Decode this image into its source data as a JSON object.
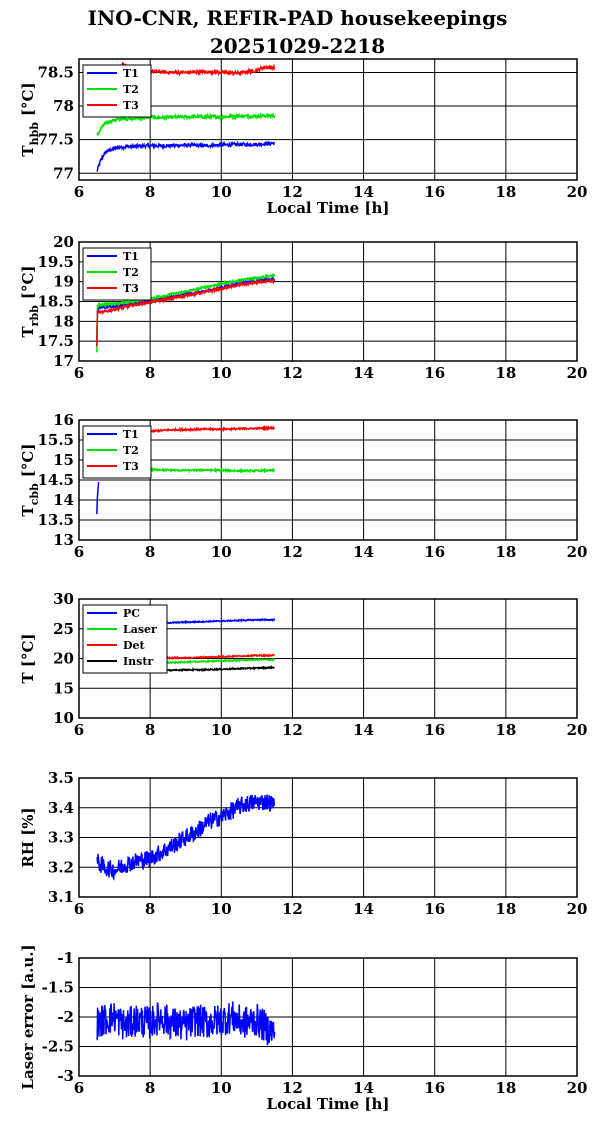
{
  "title_line1": "INO-CNR, REFIR-PAD housekeepings",
  "title_line2": "20251029-2218",
  "colors": {
    "blue": "#0000ff",
    "green": "#00e000",
    "red": "#ff0000",
    "black": "#000000"
  },
  "chart_data": [
    {
      "type": "line",
      "id": "hbb",
      "ylabel_main": "T",
      "ylabel_sub": "hbb",
      "ylabel_unit": "[°C]",
      "xlabel": "Local Time [h]",
      "xlim": [
        6,
        20
      ],
      "ylim": [
        76.9,
        78.7
      ],
      "xticks": [
        6,
        8,
        10,
        12,
        14,
        16,
        18,
        20
      ],
      "yticks": [
        77,
        77.5,
        78,
        78.5
      ],
      "grid": true,
      "legend": "top-left",
      "series": [
        {
          "name": "T1",
          "color": "blue",
          "x": [
            6.5,
            6.6,
            6.7,
            6.8,
            7.0,
            7.2,
            7.5,
            8.0,
            8.5,
            9.0,
            9.5,
            10.0,
            10.5,
            11.0,
            11.5
          ],
          "y": [
            77.02,
            77.18,
            77.28,
            77.33,
            77.37,
            77.39,
            77.4,
            77.41,
            77.41,
            77.42,
            77.41,
            77.42,
            77.43,
            77.43,
            77.45
          ]
        },
        {
          "name": "T2",
          "color": "green",
          "x": [
            6.5,
            6.6,
            6.7,
            6.8,
            7.0,
            7.2,
            7.5,
            8.0,
            8.5,
            9.0,
            9.5,
            10.0,
            10.5,
            11.0,
            11.5
          ],
          "y": [
            77.55,
            77.65,
            77.72,
            77.76,
            77.79,
            77.81,
            77.82,
            77.83,
            77.83,
            77.84,
            77.84,
            77.84,
            77.85,
            77.85,
            77.86
          ]
        },
        {
          "name": "T3",
          "color": "red",
          "x": [
            7.2,
            7.5,
            8.0,
            8.5,
            9.0,
            9.5,
            10.0,
            10.5,
            11.0,
            11.2,
            11.5
          ],
          "y": [
            78.62,
            78.55,
            78.52,
            78.5,
            78.5,
            78.51,
            78.5,
            78.49,
            78.53,
            78.58,
            78.57
          ]
        }
      ]
    },
    {
      "type": "line",
      "id": "rbb",
      "ylabel_main": "T",
      "ylabel_sub": "rbb",
      "ylabel_unit": "[°C]",
      "xlabel": "",
      "xlim": [
        6,
        20
      ],
      "ylim": [
        17,
        20
      ],
      "xticks": [
        6,
        8,
        10,
        12,
        14,
        16,
        18,
        20
      ],
      "yticks": [
        17,
        17.5,
        18,
        18.5,
        19,
        19.5,
        20
      ],
      "grid": true,
      "legend": "top-left",
      "series": [
        {
          "name": "T1",
          "color": "blue",
          "x": [
            6.5,
            6.52,
            6.6,
            7.0,
            7.5,
            8.0,
            8.5,
            9.0,
            9.5,
            10.0,
            10.5,
            11.0,
            11.5
          ],
          "y": [
            17.4,
            18.3,
            18.35,
            18.38,
            18.45,
            18.52,
            18.6,
            18.68,
            18.75,
            18.85,
            18.95,
            19.02,
            19.07
          ]
        },
        {
          "name": "T2",
          "color": "green",
          "x": [
            6.5,
            6.52,
            6.6,
            7.0,
            7.5,
            8.0,
            8.5,
            9.0,
            9.5,
            10.0,
            10.5,
            11.0,
            11.5
          ],
          "y": [
            17.25,
            18.4,
            18.42,
            18.45,
            18.5,
            18.58,
            18.66,
            18.75,
            18.85,
            18.95,
            19.03,
            19.1,
            19.15
          ]
        },
        {
          "name": "T3",
          "color": "red",
          "x": [
            6.5,
            6.52,
            6.6,
            7.0,
            7.5,
            8.0,
            8.5,
            9.0,
            9.5,
            10.0,
            10.5,
            11.0,
            11.5
          ],
          "y": [
            17.35,
            18.25,
            18.22,
            18.3,
            18.4,
            18.48,
            18.56,
            18.65,
            18.73,
            18.82,
            18.92,
            18.98,
            19.02
          ]
        }
      ]
    },
    {
      "type": "line",
      "id": "cbb",
      "ylabel_main": "T",
      "ylabel_sub": "cbb",
      "ylabel_unit": "[°C]",
      "xlabel": "",
      "xlim": [
        6,
        20
      ],
      "ylim": [
        13,
        16
      ],
      "xticks": [
        6,
        8,
        10,
        12,
        14,
        16,
        18,
        20
      ],
      "yticks": [
        13,
        13.5,
        14,
        14.5,
        15,
        15.5,
        16
      ],
      "grid": true,
      "legend": "top-left",
      "series": [
        {
          "name": "T1",
          "color": "blue",
          "x": [
            6.5,
            6.52,
            6.55
          ],
          "y": [
            13.65,
            14.1,
            14.45
          ]
        },
        {
          "name": "T2",
          "color": "green",
          "x": [
            7.9,
            8.0,
            8.5,
            9.0,
            9.5,
            10.0,
            10.5,
            11.0,
            11.5
          ],
          "y": [
            14.75,
            14.76,
            14.75,
            14.74,
            14.75,
            14.74,
            14.73,
            14.73,
            14.74
          ]
        },
        {
          "name": "T3",
          "color": "red",
          "x": [
            8.0,
            8.5,
            9.0,
            9.5,
            10.0,
            10.5,
            11.0,
            11.5
          ],
          "y": [
            15.72,
            15.75,
            15.76,
            15.77,
            15.77,
            15.78,
            15.79,
            15.8
          ]
        }
      ]
    },
    {
      "type": "line",
      "id": "temps",
      "ylabel_main": "T [°C]",
      "ylabel_sub": "",
      "ylabel_unit": "",
      "xlabel": "",
      "xlim": [
        6,
        20
      ],
      "ylim": [
        10,
        30
      ],
      "xticks": [
        6,
        8,
        10,
        12,
        14,
        16,
        18,
        20
      ],
      "yticks": [
        10,
        15,
        20,
        25,
        30
      ],
      "grid": true,
      "legend": "top-left",
      "series": [
        {
          "name": "PC",
          "color": "blue",
          "x": [
            8.0,
            8.5,
            9.0,
            9.5,
            10.0,
            10.5,
            11.0,
            11.5
          ],
          "y": [
            26.0,
            26.0,
            26.1,
            26.2,
            26.3,
            26.4,
            26.5,
            26.5
          ]
        },
        {
          "name": "Laser",
          "color": "green",
          "x": [
            8.0,
            8.5,
            9.0,
            9.5,
            10.0,
            10.5,
            11.0,
            11.5
          ],
          "y": [
            19.2,
            19.3,
            19.4,
            19.5,
            19.6,
            19.7,
            19.8,
            19.8
          ]
        },
        {
          "name": "Det",
          "color": "red",
          "x": [
            8.0,
            8.5,
            9.0,
            9.5,
            10.0,
            10.5,
            11.0,
            11.5
          ],
          "y": [
            20.0,
            20.1,
            20.1,
            20.2,
            20.3,
            20.4,
            20.5,
            20.5
          ]
        },
        {
          "name": "Instr",
          "color": "black",
          "x": [
            8.0,
            8.5,
            9.0,
            9.5,
            10.0,
            10.5,
            11.0,
            11.5
          ],
          "y": [
            18.0,
            18.0,
            18.1,
            18.1,
            18.2,
            18.3,
            18.4,
            18.5
          ]
        }
      ]
    },
    {
      "type": "line",
      "id": "rh",
      "ylabel_main": "RH [%]",
      "ylabel_sub": "",
      "ylabel_unit": "",
      "xlabel": "",
      "xlim": [
        6,
        20
      ],
      "ylim": [
        3.1,
        3.5
      ],
      "xticks": [
        6,
        8,
        10,
        12,
        14,
        16,
        18,
        20
      ],
      "yticks": [
        3.1,
        3.2,
        3.3,
        3.4,
        3.5
      ],
      "grid": true,
      "legend": "none",
      "series": [
        {
          "name": "",
          "color": "blue",
          "x": [
            6.5,
            6.7,
            7.0,
            7.3,
            7.6,
            8.0,
            8.3,
            8.6,
            9.0,
            9.3,
            9.6,
            10.0,
            10.3,
            10.6,
            11.0,
            11.3,
            11.5
          ],
          "y": [
            3.22,
            3.2,
            3.19,
            3.21,
            3.22,
            3.23,
            3.25,
            3.27,
            3.3,
            3.32,
            3.35,
            3.37,
            3.39,
            3.41,
            3.42,
            3.42,
            3.41
          ]
        }
      ]
    },
    {
      "type": "line",
      "id": "laser",
      "ylabel_main": "Laser error [a.u.]",
      "ylabel_sub": "",
      "ylabel_unit": "",
      "xlabel": "Local Time [h]",
      "xlim": [
        6,
        20
      ],
      "ylim": [
        -3,
        -1
      ],
      "xticks": [
        6,
        8,
        10,
        12,
        14,
        16,
        18,
        20
      ],
      "yticks": [
        -3,
        -2.5,
        -2,
        -1.5,
        -1
      ],
      "grid": true,
      "legend": "none",
      "series": [
        {
          "name": "",
          "color": "blue",
          "x": [
            6.5,
            6.7,
            7.0,
            7.3,
            7.6,
            8.0,
            8.3,
            8.6,
            9.0,
            9.3,
            9.6,
            10.0,
            10.3,
            10.6,
            11.0,
            11.3,
            11.5
          ],
          "y": [
            -2.1,
            -2.05,
            -2.0,
            -2.15,
            -2.05,
            -2.1,
            -2.0,
            -2.1,
            -2.15,
            -2.05,
            -2.1,
            -2.05,
            -2.0,
            -2.1,
            -2.05,
            -2.2,
            -2.25
          ]
        }
      ]
    }
  ]
}
